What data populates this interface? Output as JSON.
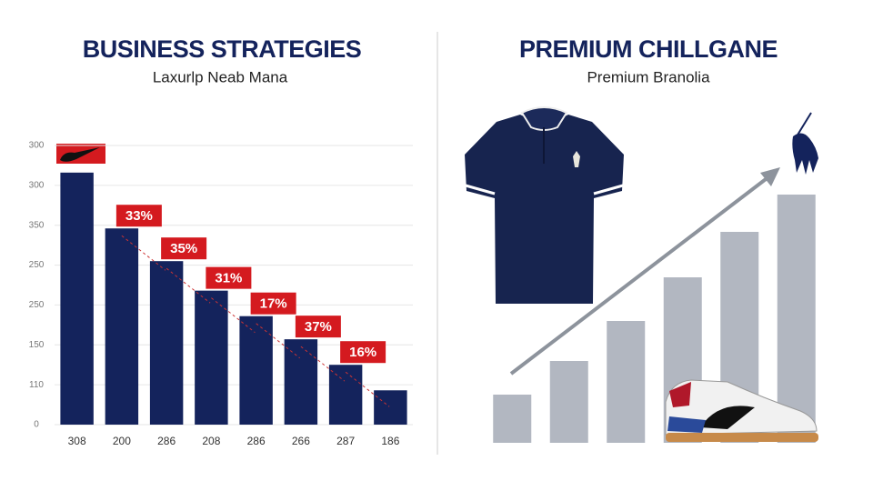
{
  "chart_data": [
    {
      "type": "bar",
      "title": "BUSINESS STRATEGIES",
      "subtitle": "Laxurlp Neab Mana",
      "categories": [
        "308",
        "200",
        "286",
        "208",
        "286",
        "266",
        "287",
        "186"
      ],
      "values": [
        316,
        246,
        205,
        168,
        136,
        107,
        75,
        43
      ],
      "color": "#14235c",
      "ylim": [
        0,
        350
      ],
      "yticks": [
        0,
        {
          "value": 50,
          "label": "110"
        },
        {
          "value": 100,
          "label": "150"
        },
        {
          "value": 150,
          "label": "250"
        },
        {
          "value": 200,
          "label": "250"
        },
        {
          "value": 250,
          "label": "350"
        },
        {
          "value": 300,
          "label": "300"
        },
        {
          "value": 350,
          "label": "300"
        }
      ],
      "grid": true,
      "annotations": [
        "33%",
        "35%",
        "31%",
        "17%",
        "37%",
        "16%"
      ]
    },
    {
      "type": "bar",
      "title": "PREMIUM CHILLGANE",
      "subtitle": "Premium Branolia",
      "values": [
        53,
        90,
        134,
        182,
        232,
        273
      ],
      "color": "#b2b7c1",
      "ylim": [
        0,
        300
      ]
    }
  ]
}
